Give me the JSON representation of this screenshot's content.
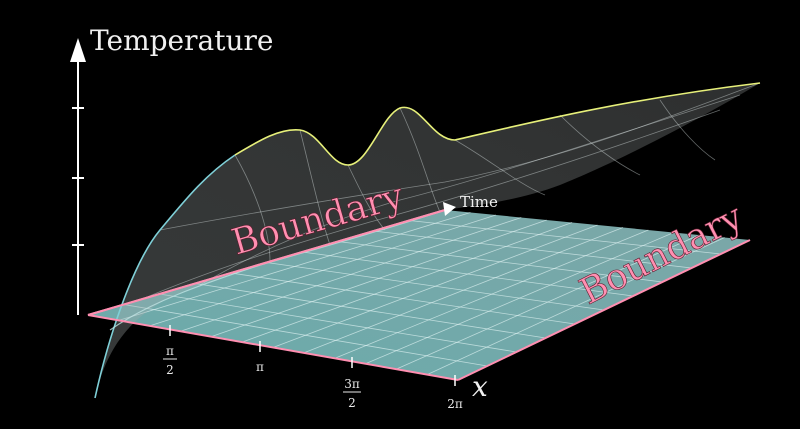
{
  "axes": {
    "vertical_title": "Temperature",
    "depth_title": "Time",
    "horizontal_title": "x"
  },
  "x_ticks": [
    {
      "num": "π",
      "den": "2"
    },
    {
      "num": "π",
      "den": ""
    },
    {
      "num": "3π",
      "den": "2"
    },
    {
      "num": "2π",
      "den": ""
    }
  ],
  "boundary_labels": {
    "left": "Boundary",
    "right": "Boundary"
  },
  "colors": {
    "plane_fill": "#8fd6d8",
    "plane_edge": "#ff8fb1",
    "grid": "#d8f2f2",
    "surface_edge_front": "#7fd0d8",
    "surface_edge_back": "#e7f07a",
    "axis": "#ffffff"
  }
}
